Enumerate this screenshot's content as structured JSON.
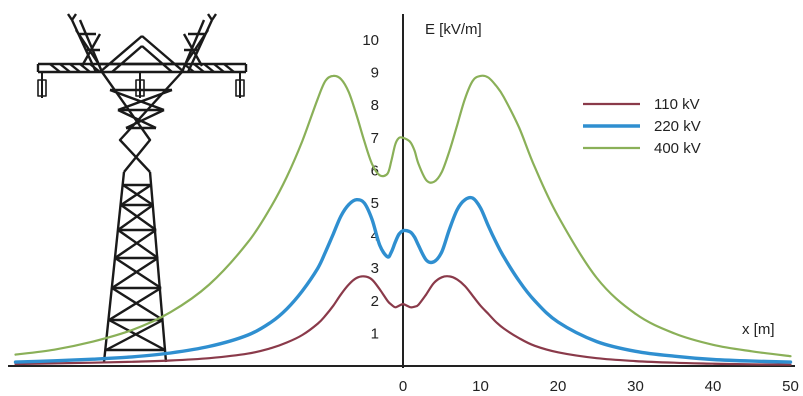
{
  "chart_data": {
    "type": "line",
    "title": "",
    "xlabel": "x [m]",
    "ylabel": "E [kV/m]",
    "xlim": [
      -50,
      50
    ],
    "ylim": [
      0,
      10
    ],
    "x_ticks": [
      0,
      10,
      20,
      30,
      40,
      50
    ],
    "y_ticks": [
      1,
      2,
      3,
      4,
      5,
      6,
      7,
      8,
      9,
      10
    ],
    "grid": false,
    "legend_position": "top-right",
    "x": [
      -50,
      -45,
      -40,
      -35,
      -30,
      -25,
      -20,
      -17,
      -15,
      -13,
      -11,
      -10,
      -9,
      -8,
      -7,
      -6,
      -5,
      -4,
      -3,
      -2,
      -1.5,
      -1,
      -0.5,
      0,
      0.5,
      1,
      1.5,
      2,
      3,
      4,
      5,
      6,
      7,
      8,
      9,
      10,
      11,
      12,
      13,
      15,
      17,
      20,
      25,
      30,
      35,
      40,
      45,
      50
    ],
    "series": [
      {
        "name": "110 kV",
        "color": "#8a3a4a",
        "values": [
          0.06,
          0.08,
          0.1,
          0.13,
          0.17,
          0.24,
          0.38,
          0.55,
          0.72,
          0.95,
          1.3,
          1.55,
          1.85,
          2.2,
          2.5,
          2.7,
          2.75,
          2.65,
          2.35,
          2.0,
          1.88,
          1.8,
          1.85,
          1.9,
          1.85,
          1.8,
          1.82,
          1.88,
          2.2,
          2.55,
          2.72,
          2.75,
          2.65,
          2.45,
          2.15,
          1.85,
          1.6,
          1.35,
          1.15,
          0.85,
          0.62,
          0.42,
          0.24,
          0.15,
          0.1,
          0.07,
          0.05,
          0.04
        ]
      },
      {
        "name": "220 kV",
        "color": "#2f8fd0",
        "values": [
          0.12,
          0.16,
          0.21,
          0.28,
          0.4,
          0.6,
          0.95,
          1.35,
          1.75,
          2.3,
          3.0,
          3.5,
          4.05,
          4.6,
          4.95,
          5.1,
          5.0,
          4.5,
          3.7,
          3.35,
          3.5,
          3.8,
          4.05,
          4.15,
          4.15,
          4.1,
          3.95,
          3.7,
          3.25,
          3.2,
          3.5,
          4.2,
          4.8,
          5.1,
          5.15,
          4.85,
          4.3,
          3.8,
          3.35,
          2.6,
          2.0,
          1.35,
          0.75,
          0.45,
          0.3,
          0.2,
          0.15,
          0.12
        ]
      },
      {
        "name": "400 kV",
        "color": "#8ab058",
        "values": [
          0.35,
          0.5,
          0.75,
          1.1,
          1.65,
          2.5,
          3.8,
          4.9,
          5.8,
          6.9,
          8.2,
          8.75,
          8.9,
          8.8,
          8.4,
          7.7,
          6.9,
          6.2,
          5.85,
          5.9,
          6.3,
          6.8,
          7.0,
          7.0,
          6.95,
          6.85,
          6.6,
          6.2,
          5.7,
          5.65,
          5.95,
          6.6,
          7.4,
          8.2,
          8.75,
          8.9,
          8.85,
          8.6,
          8.25,
          7.3,
          6.1,
          4.6,
          2.7,
          1.6,
          1.0,
          0.65,
          0.45,
          0.3
        ]
      }
    ]
  }
}
